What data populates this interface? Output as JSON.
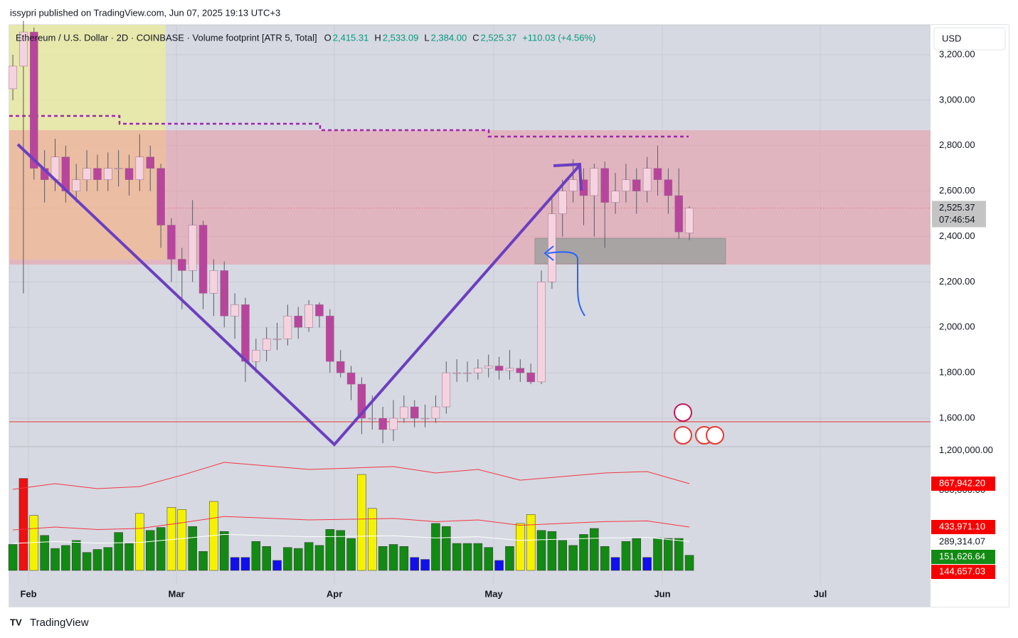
{
  "page": {
    "byline": "issypri published on TradingView.com, Jun 07, 2025 19:13 UTC+3",
    "brand": "TradingView",
    "currency_button": "USD"
  },
  "chart_data": {
    "type": "candlestick",
    "legend": {
      "symbol": "Ethereum / U.S. Dollar · 2D · COINBASE · Volume footprint [ATR 5, Total]",
      "ohlc": [
        {
          "key": "O",
          "value": "2,415.31"
        },
        {
          "key": "H",
          "value": "2,533.09"
        },
        {
          "key": "L",
          "value": "2,384.00"
        },
        {
          "key": "C",
          "value": "2,525.37"
        }
      ],
      "change": "+110.03 (+4.56%)"
    },
    "xlim": [
      -0.34,
      86.81
    ],
    "xticks": [
      {
        "value": 1.48,
        "label": "Feb"
      },
      {
        "value": 15.48,
        "label": "Mar"
      },
      {
        "value": 30.42,
        "label": "Apr"
      },
      {
        "value": 45.49,
        "label": "May"
      },
      {
        "value": 61.44,
        "label": "Jun"
      },
      {
        "value": 76.38,
        "label": "Jul"
      }
    ],
    "ylim": [
      1474.8,
      3331.5
    ],
    "yticks": [
      {
        "value": 3200,
        "label": "3,200.00"
      },
      {
        "value": 3000,
        "label": "3,000.00"
      },
      {
        "value": 2800,
        "label": "2,800.00"
      },
      {
        "value": 2600,
        "label": "2,600.00"
      },
      {
        "value": 2400,
        "label": "2,400.00"
      },
      {
        "value": 2200,
        "label": "2,200.00"
      },
      {
        "value": 2000,
        "label": "2,000.00"
      },
      {
        "value": 1800,
        "label": "1,800.00"
      },
      {
        "value": 1600,
        "label": "1,600.00"
      }
    ],
    "grid": true,
    "last": {
      "value": 2525.37,
      "label": "2,525.37",
      "countdown": "07:46:54"
    },
    "candles": {
      "up_color": "#f4d3df",
      "down_color": "#b8459c",
      "wick_color": "#5a5a66",
      "open": [
        3050,
        3150,
        3300,
        2700,
        2650,
        2750,
        2600,
        2650,
        2700,
        2650,
        2700,
        2700,
        2650,
        2750,
        2700,
        2450,
        2300,
        2250,
        2450,
        2150,
        2250,
        2050,
        2100,
        1850,
        1900,
        1950,
        1950,
        2050,
        2000,
        2100,
        2050,
        1850,
        1800,
        1750,
        1600,
        1600,
        1550,
        1600,
        1650,
        1600,
        1600,
        1650,
        1800,
        1800,
        1800,
        1820,
        1830,
        1810,
        1820,
        1800,
        1760,
        2200,
        2500,
        2600,
        2650,
        2580,
        2700,
        2550,
        2600,
        2650,
        2600,
        2700,
        2650,
        2580,
        2415.31
      ],
      "high": [
        3200,
        3350,
        3320,
        2780,
        2830,
        2800,
        2720,
        2780,
        2760,
        2770,
        2780,
        2760,
        2850,
        2800,
        2720,
        2480,
        2350,
        2560,
        2470,
        2300,
        2290,
        2150,
        2130,
        1950,
        2000,
        2020,
        2100,
        2090,
        2120,
        2110,
        2080,
        1900,
        1830,
        1780,
        1700,
        1650,
        1680,
        1700,
        1680,
        1660,
        1700,
        1850,
        1860,
        1850,
        1860,
        1880,
        1870,
        1900,
        1860,
        1840,
        2250,
        2580,
        2650,
        2740,
        2700,
        2720,
        2730,
        2680,
        2720,
        2700,
        2750,
        2800,
        2700,
        2700,
        2533.09
      ],
      "low": [
        3000,
        2150,
        2650,
        2550,
        2600,
        2550,
        2550,
        2600,
        2600,
        2600,
        2620,
        2580,
        2600,
        2600,
        2350,
        2200,
        2080,
        2200,
        2080,
        2050,
        2000,
        1950,
        1760,
        1800,
        1850,
        1900,
        1920,
        1950,
        1980,
        2000,
        1800,
        1780,
        1680,
        1530,
        1550,
        1490,
        1500,
        1580,
        1560,
        1560,
        1580,
        1620,
        1760,
        1760,
        1770,
        1780,
        1770,
        1770,
        1760,
        1750,
        1750,
        2170,
        2400,
        2550,
        2450,
        2400,
        2350,
        2500,
        2550,
        2500,
        2550,
        2580,
        2500,
        2390,
        2384
      ],
      "close": [
        3150,
        3300,
        2700,
        2650,
        2750,
        2600,
        2650,
        2700,
        2650,
        2700,
        2700,
        2650,
        2750,
        2700,
        2450,
        2300,
        2250,
        2450,
        2150,
        2250,
        2050,
        2100,
        1850,
        1900,
        1950,
        1950,
        2050,
        2000,
        2100,
        2050,
        1850,
        1800,
        1750,
        1600,
        1600,
        1550,
        1600,
        1650,
        1600,
        1600,
        1650,
        1800,
        1800,
        1800,
        1820,
        1830,
        1810,
        1820,
        1800,
        1760,
        2200,
        2500,
        2600,
        2650,
        2580,
        2700,
        2550,
        2600,
        2650,
        2600,
        2700,
        2650,
        2580,
        2420,
        2525.37
      ]
    },
    "volume": {
      "ylim": [
        -128058,
        1237876
      ],
      "yticks": [
        {
          "value": 1200000,
          "label": "1,200,000.00"
        },
        {
          "value": 800000,
          "label": "800,000.00"
        }
      ],
      "values": [
        260000,
        920000,
        550000,
        350000,
        220000,
        250000,
        300000,
        180000,
        210000,
        230000,
        380000,
        270000,
        570000,
        400000,
        430000,
        630000,
        610000,
        440000,
        190000,
        690000,
        390000,
        130000,
        130000,
        290000,
        240000,
        100000,
        230000,
        220000,
        280000,
        250000,
        410000,
        400000,
        320000,
        960000,
        620000,
        240000,
        260000,
        240000,
        130000,
        110000,
        470000,
        440000,
        270000,
        270000,
        270000,
        230000,
        100000,
        240000,
        470000,
        560000,
        400000,
        390000,
        300000,
        250000,
        360000,
        420000,
        240000,
        130000,
        290000,
        320000,
        130000,
        320000,
        320000,
        320000,
        151626.64
      ],
      "colors": [
        "#138a13",
        "#f01010",
        "#f5f200",
        "#138a13",
        "#138a13",
        "#138a13",
        "#138a13",
        "#138a13",
        "#138a13",
        "#138a13",
        "#138a13",
        "#138a13",
        "#f5f200",
        "#138a13",
        "#138a13",
        "#f5f200",
        "#f5f200",
        "#138a13",
        "#138a13",
        "#f5f200",
        "#138a13",
        "#1010ee",
        "#1010ee",
        "#138a13",
        "#138a13",
        "#1010ee",
        "#138a13",
        "#138a13",
        "#138a13",
        "#138a13",
        "#138a13",
        "#138a13",
        "#138a13",
        "#f5f200",
        "#f5f200",
        "#138a13",
        "#138a13",
        "#138a13",
        "#1010ee",
        "#1010ee",
        "#138a13",
        "#138a13",
        "#138a13",
        "#138a13",
        "#138a13",
        "#138a13",
        "#1010ee",
        "#138a13",
        "#f5f200",
        "#f5f200",
        "#138a13",
        "#138a13",
        "#138a13",
        "#138a13",
        "#138a13",
        "#138a13",
        "#138a13",
        "#1010ee",
        "#138a13",
        "#138a13",
        "#1010ee",
        "#138a13",
        "#138a13",
        "#138a13",
        "#138a13"
      ],
      "lines": {
        "x": [
          0,
          4,
          8,
          12,
          16,
          20,
          24,
          28,
          32,
          36,
          40,
          44,
          48,
          52,
          56,
          60,
          64
        ],
        "series": [
          {
            "color": "#f23645",
            "values": [
              811000,
              868000,
              818000,
              839000,
              953000,
              1081000,
              1046000,
              1010000,
              1024000,
              1039000,
              975000,
              1010000,
              903000,
              939000,
              975000,
              989000,
              868000
            ]
          },
          {
            "color": "#f23645",
            "values": [
              405000,
              434000,
              409000,
              420000,
              477000,
              540000,
              523000,
              505000,
              512000,
              520000,
              488000,
              505000,
              452000,
              470000,
              488000,
              495000,
              434000
            ]
          },
          {
            "color": "#ffffff",
            "values": [
              270000,
              289000,
              273000,
              280000,
              318000,
              360000,
              349000,
              337000,
              341000,
              347000,
              325000,
              337000,
              301000,
              313000,
              325000,
              330000,
              289000
            ]
          }
        ]
      },
      "labels": [
        {
          "value": 867942.2,
          "label": "867,942.20",
          "color": "#f70000"
        },
        {
          "value": 433971.1,
          "label": "433,971.10",
          "color": "#f70000"
        },
        {
          "value": 289314.07,
          "label": "289,314.07",
          "color": "#ffffff"
        },
        {
          "value": 151626.64,
          "label": "151,626.64",
          "color": "#138a13"
        },
        {
          "value": 144657.03,
          "label": "144,657.03",
          "color": "#f70000"
        }
      ]
    }
  }
}
